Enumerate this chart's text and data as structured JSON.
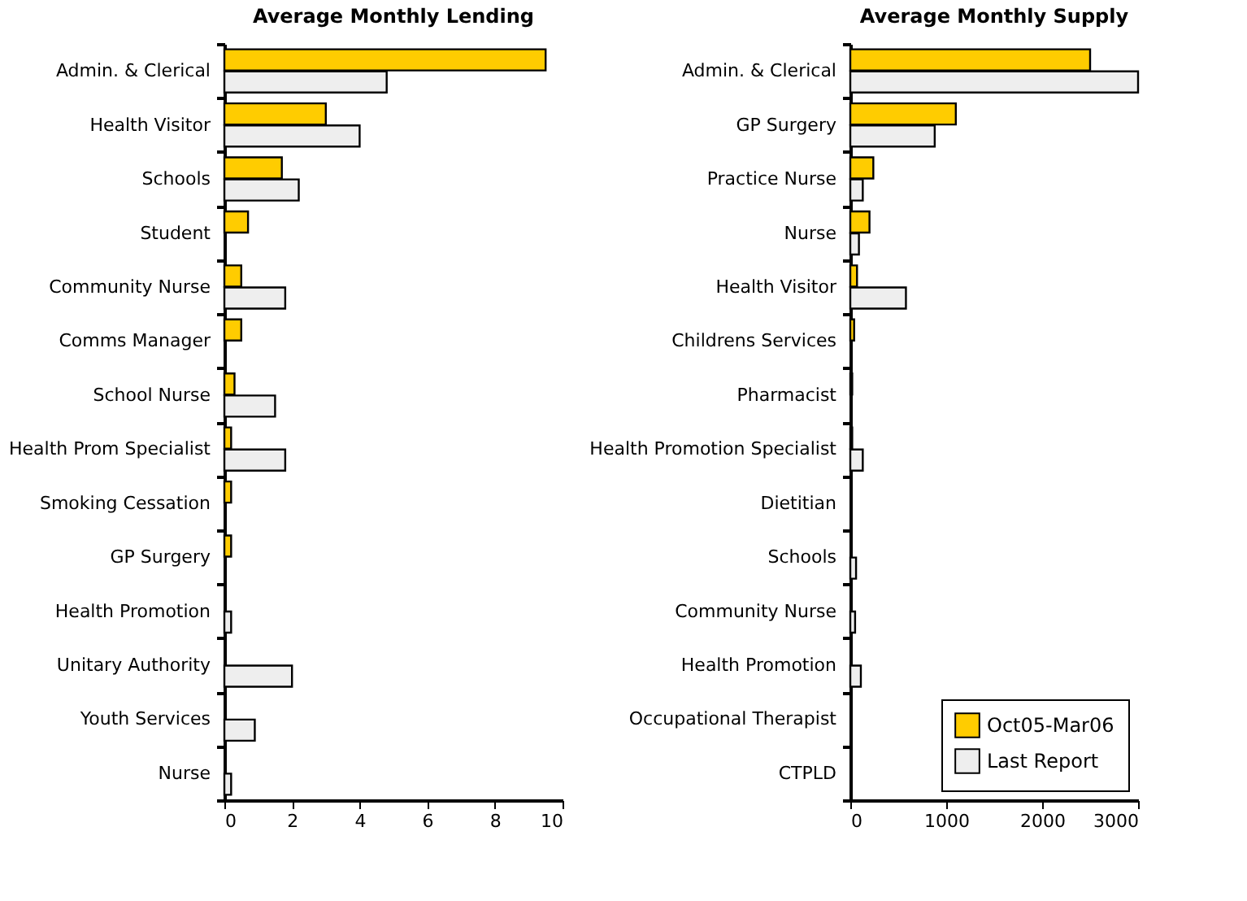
{
  "chart_data": [
    {
      "type": "bar",
      "orientation": "horizontal",
      "title": "Average Monthly Lending",
      "categories": [
        "Admin. & Clerical",
        "Health Visitor",
        "Schools",
        "Student",
        "Community Nurse",
        "Comms Manager",
        "School Nurse",
        "Health Prom Specialist",
        "Smoking Cessation",
        "GP Surgery",
        "Health Promotion",
        "Unitary Authority",
        "Youth Services",
        "Nurse"
      ],
      "series": [
        {
          "color": "#ffcc00",
          "values": [
            9.5,
            3.0,
            1.7,
            0.7,
            0.5,
            0.5,
            0.3,
            0.2,
            0.2,
            0.2,
            null,
            null,
            null,
            null
          ]
        },
        {
          "color": "#eeeeee",
          "values": [
            4.8,
            4.0,
            2.2,
            null,
            1.8,
            null,
            1.5,
            1.8,
            null,
            null,
            0.2,
            2.0,
            0.9,
            0.2
          ]
        }
      ],
      "xlim": [
        0,
        10
      ],
      "xticks": [
        0,
        2,
        4,
        6,
        8,
        10
      ],
      "grid": false
    },
    {
      "type": "bar",
      "orientation": "horizontal",
      "title": "Average Monthly Supply",
      "categories": [
        "Admin. & Clerical",
        "GP Surgery",
        "Practice Nurse",
        "Nurse",
        "Health Visitor",
        "Childrens Services",
        "Pharmacist",
        "Health Promotion Specialist",
        "Dietitian",
        "Schools",
        "Community Nurse",
        "Health Promotion",
        "Occupational Therapist",
        "CTPLD"
      ],
      "series": [
        {
          "name": "Oct05-Mar06",
          "color": "#ffcc00",
          "values": [
            2500,
            1100,
            240,
            200,
            70,
            40,
            20,
            20,
            null,
            null,
            null,
            null,
            null,
            null
          ]
        },
        {
          "name": "Last Report",
          "color": "#eeeeee",
          "values": [
            3000,
            880,
            130,
            90,
            580,
            null,
            null,
            130,
            null,
            60,
            50,
            110,
            null,
            null
          ]
        }
      ],
      "xlim": [
        0,
        3000
      ],
      "xticks": [
        0,
        1000,
        2000,
        3000
      ],
      "grid": false,
      "legend": "bottom right"
    }
  ]
}
